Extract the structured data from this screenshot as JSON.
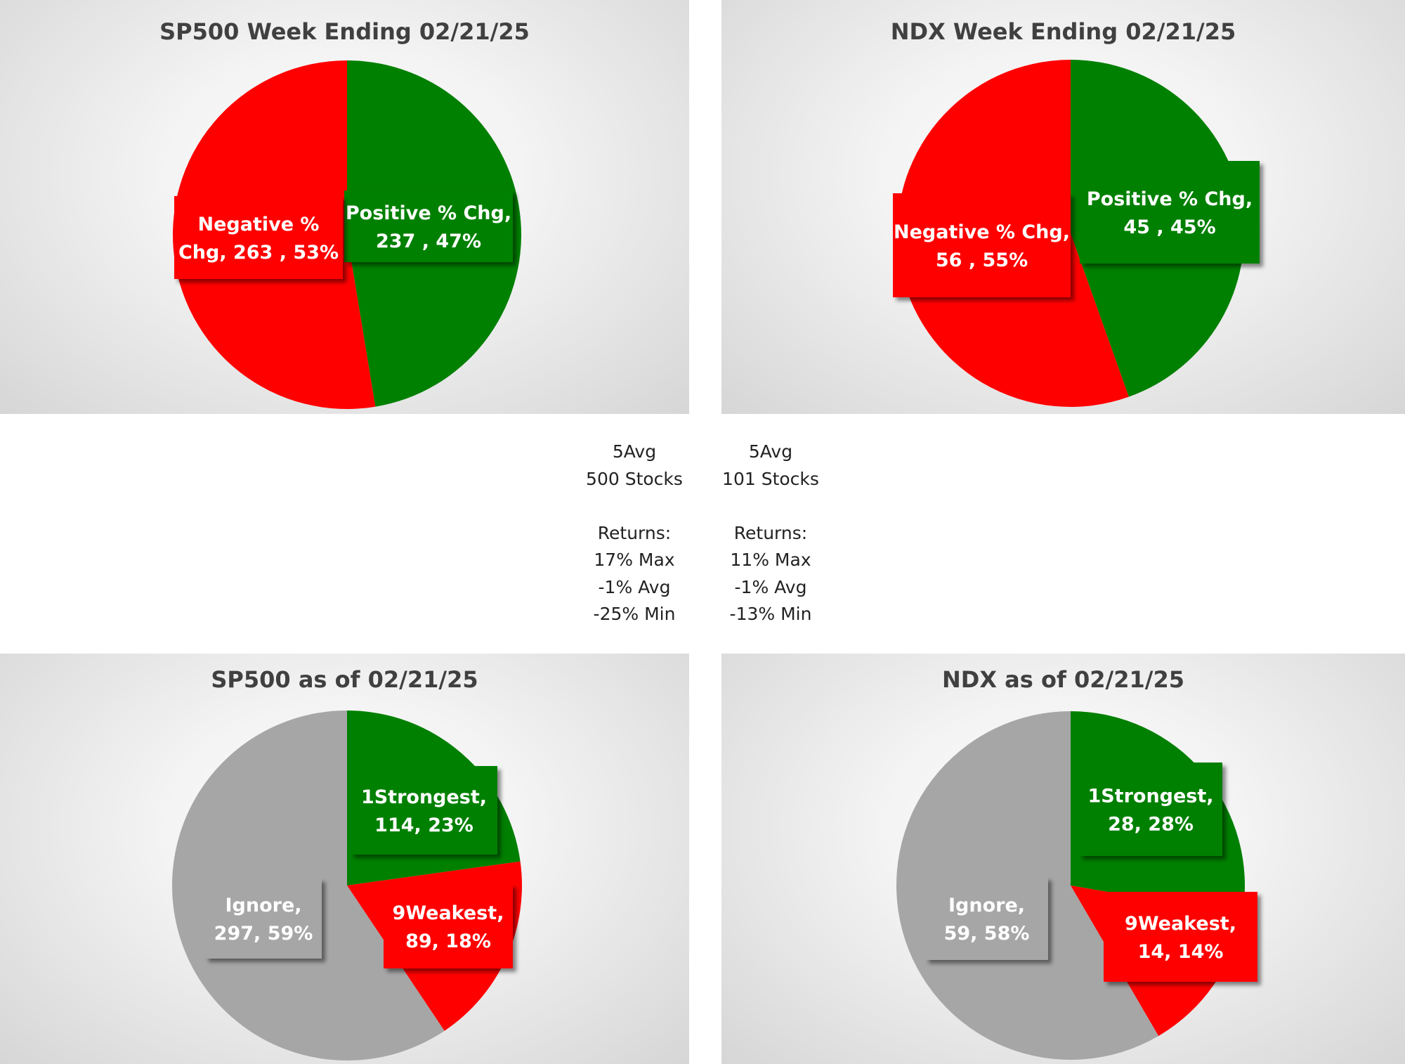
{
  "chart_data": [
    {
      "type": "pie",
      "title": "SP500 Week Ending 02/21/25",
      "slices": [
        {
          "name": "Positive % Chg",
          "value": 237,
          "pct": "47%",
          "color": "#008000",
          "label_lines": [
            "Positive % Chg,",
            "237 , 47%"
          ]
        },
        {
          "name": "Negative % Chg",
          "value": 263,
          "pct": "53%",
          "color": "#ff0000",
          "label_lines": [
            "Negative %",
            "Chg,  263 , 53%"
          ]
        }
      ]
    },
    {
      "type": "pie",
      "title": "NDX Week Ending 02/21/25",
      "slices": [
        {
          "name": "Positive % Chg",
          "value": 45,
          "pct": "45%",
          "color": "#008000",
          "label_lines": [
            "Positive % Chg,",
            "45 , 45%"
          ]
        },
        {
          "name": "Negative % Chg",
          "value": 56,
          "pct": "55%",
          "color": "#ff0000",
          "label_lines": [
            "Negative % Chg,",
            "56 , 55%"
          ]
        }
      ]
    },
    {
      "type": "pie",
      "title": "SP500 as of 02/21/25",
      "slices": [
        {
          "name": "1Strongest",
          "value": 114,
          "pct": "23%",
          "color": "#008000",
          "label_lines": [
            "1Strongest,",
            "114, 23%"
          ]
        },
        {
          "name": "9Weakest",
          "value": 89,
          "pct": "18%",
          "color": "#ff0000",
          "label_lines": [
            "9Weakest,",
            "89, 18%"
          ]
        },
        {
          "name": "Ignore",
          "value": 297,
          "pct": "59%",
          "color": "#a6a6a6",
          "label_lines": [
            "Ignore,",
            "297, 59%"
          ]
        }
      ]
    },
    {
      "type": "pie",
      "title": "NDX as of 02/21/25",
      "slices": [
        {
          "name": "1Strongest",
          "value": 28,
          "pct": "28%",
          "color": "#008000",
          "label_lines": [
            "1Strongest,",
            "28, 28%"
          ]
        },
        {
          "name": "9Weakest",
          "value": 14,
          "pct": "14%",
          "color": "#ff0000",
          "label_lines": [
            "9Weakest,",
            "14, 14%"
          ]
        },
        {
          "name": "Ignore",
          "value": 59,
          "pct": "58%",
          "color": "#a6a6a6",
          "label_lines": [
            "Ignore,",
            "59, 58%"
          ]
        }
      ]
    }
  ],
  "stats": {
    "sp500": [
      "5Avg",
      "500 Stocks",
      "",
      "Returns:",
      "17% Max",
      "-1% Avg",
      "-25% Min"
    ],
    "ndx": [
      "5Avg",
      "101 Stocks",
      "",
      "Returns:",
      "11% Max",
      "-1% Avg",
      "-13% Min"
    ]
  }
}
